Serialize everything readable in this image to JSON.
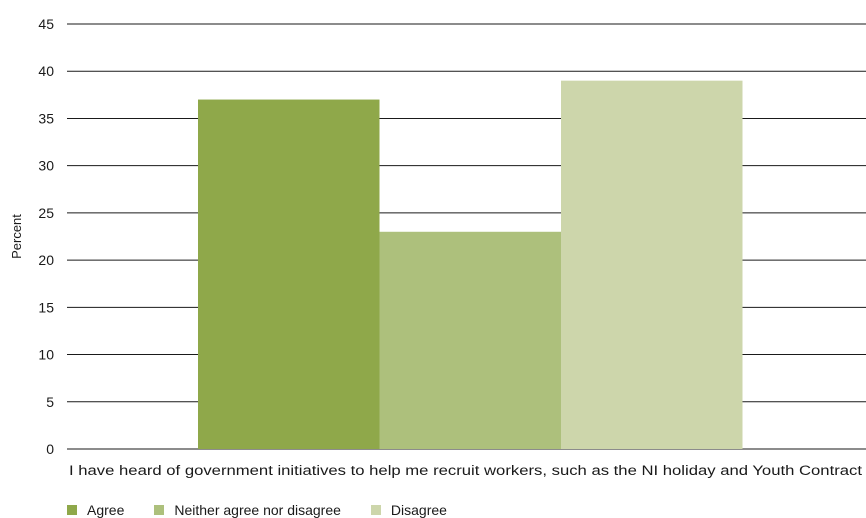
{
  "chart_data": {
    "type": "bar",
    "categories": [
      "I have heard of government initiatives to help me recruit workers, such as the NI holiday and Youth Contract"
    ],
    "series": [
      {
        "name": "Agree",
        "values": [
          37
        ],
        "color": "#8fa84a"
      },
      {
        "name": "Neither agree nor disagree",
        "values": [
          23
        ],
        "color": "#adc07c"
      },
      {
        "name": "Disagree",
        "values": [
          39
        ],
        "color": "#cdd6ab"
      }
    ],
    "xlabel": "",
    "ylabel": "Percent",
    "ylim": [
      0,
      45
    ],
    "yticks": [
      "0",
      "5",
      "10",
      "15",
      "20",
      "25",
      "30",
      "35",
      "40",
      "45"
    ],
    "grid": true,
    "legend_position": "bottom-left"
  }
}
